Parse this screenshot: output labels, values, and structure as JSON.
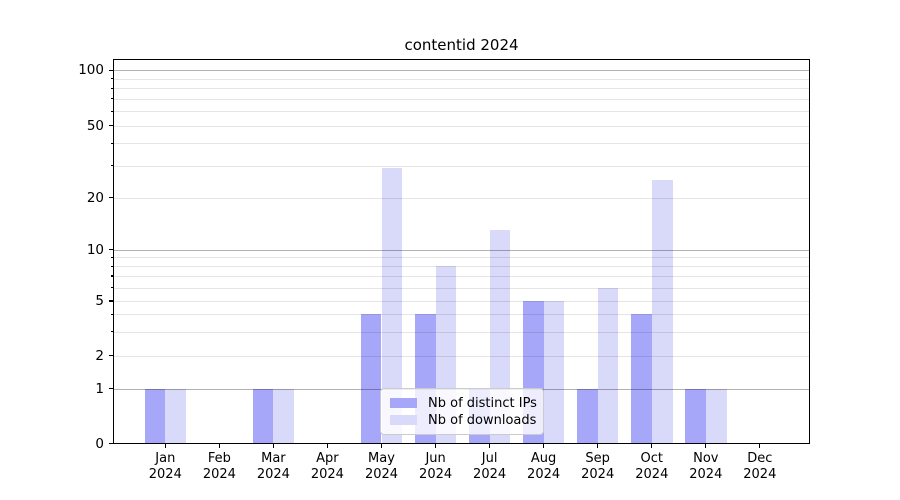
{
  "chart_data": {
    "type": "bar",
    "title": "contentid 2024",
    "categories": [
      "Jan 2024",
      "Feb 2024",
      "Mar 2024",
      "Apr 2024",
      "May 2024",
      "Jun 2024",
      "Jul 2024",
      "Aug 2024",
      "Sep 2024",
      "Oct 2024",
      "Nov 2024",
      "Dec 2024"
    ],
    "series": [
      {
        "name": "Nb of distinct IPs",
        "color": "#a7a7f9",
        "values": [
          1,
          0,
          1,
          0,
          4,
          4,
          1,
          5,
          1,
          4,
          1,
          0
        ]
      },
      {
        "name": "Nb of downloads",
        "color": "#d9d9f9",
        "values": [
          1,
          0,
          1,
          0,
          29,
          8,
          13,
          5,
          6,
          25,
          1,
          0
        ]
      }
    ],
    "xlabel": "",
    "ylabel": "",
    "yscale": "symlog",
    "y_ticks": [
      0,
      1,
      2,
      5,
      10,
      20,
      50,
      100
    ],
    "ylim": [
      0,
      115
    ],
    "grid": "major and minor horizontal gridlines",
    "legend_position": "inside lower center"
  },
  "legend": {
    "items": [
      {
        "label": "Nb of distinct IPs",
        "color": "#a7a7f9"
      },
      {
        "label": "Nb of downloads",
        "color": "#d9d9f9"
      }
    ]
  },
  "colors": {
    "background": "#ffffff",
    "axis": "#000000",
    "grid_major": "#b3b3b3",
    "grid_minor": "#e3e3e3"
  }
}
